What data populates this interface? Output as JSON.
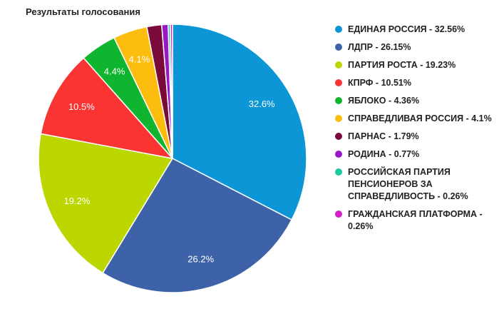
{
  "chart_data": {
    "type": "pie",
    "title": "Результаты голосования",
    "legend_position": "right",
    "slices": [
      {
        "name": "ЕДИНАЯ РОССИЯ",
        "value": 32.56,
        "legend_text": "ЕДИНАЯ РОССИЯ - 32.56%",
        "label": "32.6%",
        "color": "#0d96d6"
      },
      {
        "name": "ЛДПР",
        "value": 26.15,
        "legend_text": "ЛДПР - 26.15%",
        "label": "26.2%",
        "color": "#3d62a8"
      },
      {
        "name": "ПАРТИЯ РОСТА",
        "value": 19.23,
        "legend_text": "ПАРТИЯ РОСТА - 19.23%",
        "label": "19.2%",
        "color": "#bcd600"
      },
      {
        "name": "КПРФ",
        "value": 10.51,
        "legend_text": "КПРФ - 10.51%",
        "label": "10.5%",
        "color": "#fa3333"
      },
      {
        "name": "ЯБЛОКО",
        "value": 4.36,
        "legend_text": "ЯБЛОКО - 4.36%",
        "label": "4.4%",
        "color": "#10b52f"
      },
      {
        "name": "СПРАВЕДЛИВАЯ РОССИЯ",
        "value": 4.1,
        "legend_text": "СПРАВЕДЛИВАЯ РОССИЯ - 4.1%",
        "label": "4.1%",
        "color": "#fdbd0f"
      },
      {
        "name": "ПАРНАС",
        "value": 1.79,
        "legend_text": "ПАРНАС - 1.79%",
        "label": "",
        "color": "#7a0a3a"
      },
      {
        "name": "РОДИНА",
        "value": 0.77,
        "legend_text": "РОДИНА - 0.77%",
        "label": "",
        "color": "#9a17c4"
      },
      {
        "name": "РОССИЙСКАЯ ПАРТИЯ ПЕНСИОНЕРОВ ЗА СПРАВЕДЛИВОСТЬ",
        "value": 0.26,
        "legend_text": "РОССИЙСКАЯ ПАРТИЯ ПЕНСИОНЕРОВ ЗА СПРАВЕДЛИВОСТЬ - 0.26%",
        "label": "",
        "color": "#1ac99e"
      },
      {
        "name": "ГРАЖДАНСКАЯ ПЛАТФОРМА",
        "value": 0.26,
        "legend_text": "ГРАЖДАНСКАЯ ПЛАТФОРМА - 0.26%",
        "label": "",
        "color": "#d41fc9"
      }
    ]
  }
}
